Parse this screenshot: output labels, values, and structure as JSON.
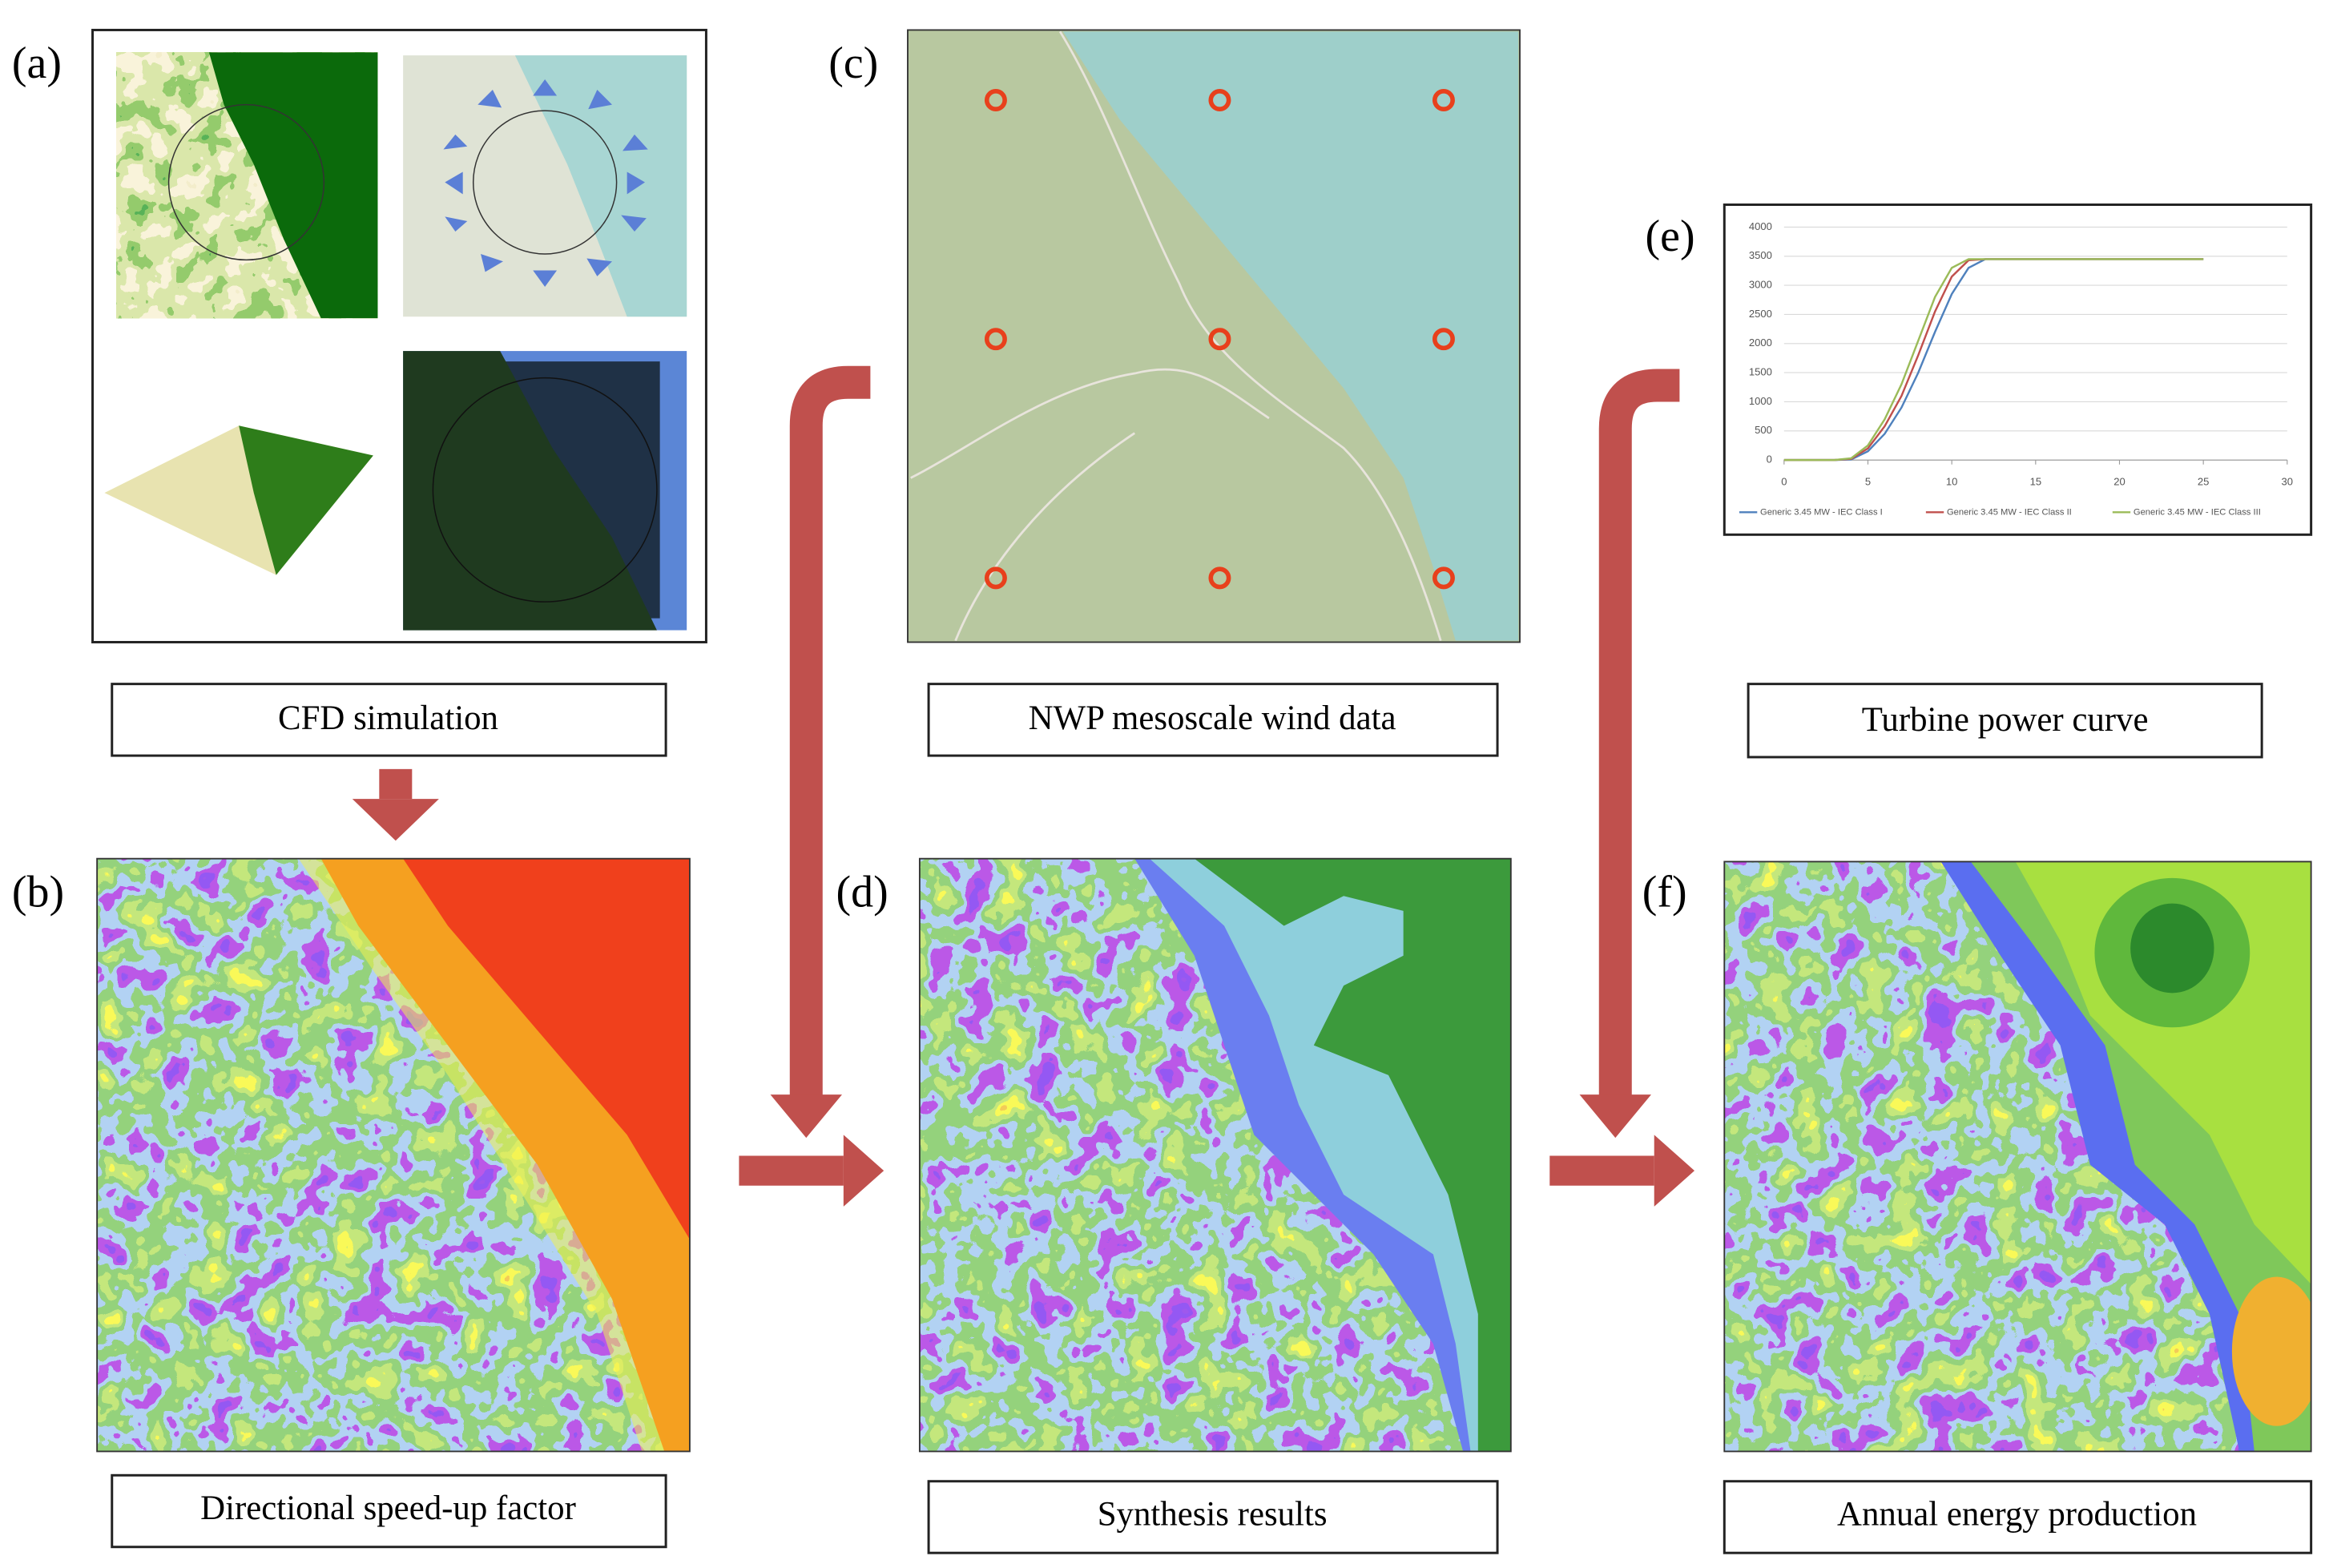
{
  "panels": [
    {
      "label": "(a)",
      "caption": "CFD simulation"
    },
    {
      "label": "(b)",
      "caption": "Directional speed-up factor"
    },
    {
      "label": "(c)",
      "caption": "NWP mesoscale wind data"
    },
    {
      "label": "(d)",
      "caption": "Synthesis results"
    },
    {
      "label": "(e)",
      "caption": "Turbine power curve"
    },
    {
      "label": "(f)",
      "caption": "Annual energy production"
    }
  ],
  "chart_data": {
    "type": "line",
    "x": [
      0,
      3,
      4,
      5,
      6,
      7,
      8,
      9,
      10,
      11,
      12,
      13,
      15,
      20,
      25
    ],
    "series": [
      {
        "name": "Generic 3.45 MW - IEC Class I",
        "color": "#4f81bd",
        "values": [
          0,
          0,
          10,
          150,
          450,
          900,
          1500,
          2200,
          2850,
          3300,
          3450,
          3450,
          3450,
          3450,
          3450
        ]
      },
      {
        "name": "Generic 3.45 MW - IEC Class II",
        "color": "#c0504d",
        "values": [
          0,
          0,
          20,
          200,
          580,
          1100,
          1800,
          2550,
          3150,
          3430,
          3450,
          3450,
          3450,
          3450,
          3450
        ]
      },
      {
        "name": "Generic 3.45 MW - IEC Class III",
        "color": "#9bbb59",
        "values": [
          0,
          0,
          30,
          250,
          700,
          1300,
          2050,
          2800,
          3300,
          3450,
          3450,
          3450,
          3450,
          3450,
          3450
        ]
      }
    ],
    "xlim": [
      0,
      30
    ],
    "xticks": [
      0,
      5,
      10,
      15,
      20,
      25,
      30
    ],
    "ylim": [
      0,
      4000
    ],
    "yticks": [
      0,
      500,
      1000,
      1500,
      2000,
      2500,
      3000,
      3500,
      4000
    ],
    "grid": true
  }
}
